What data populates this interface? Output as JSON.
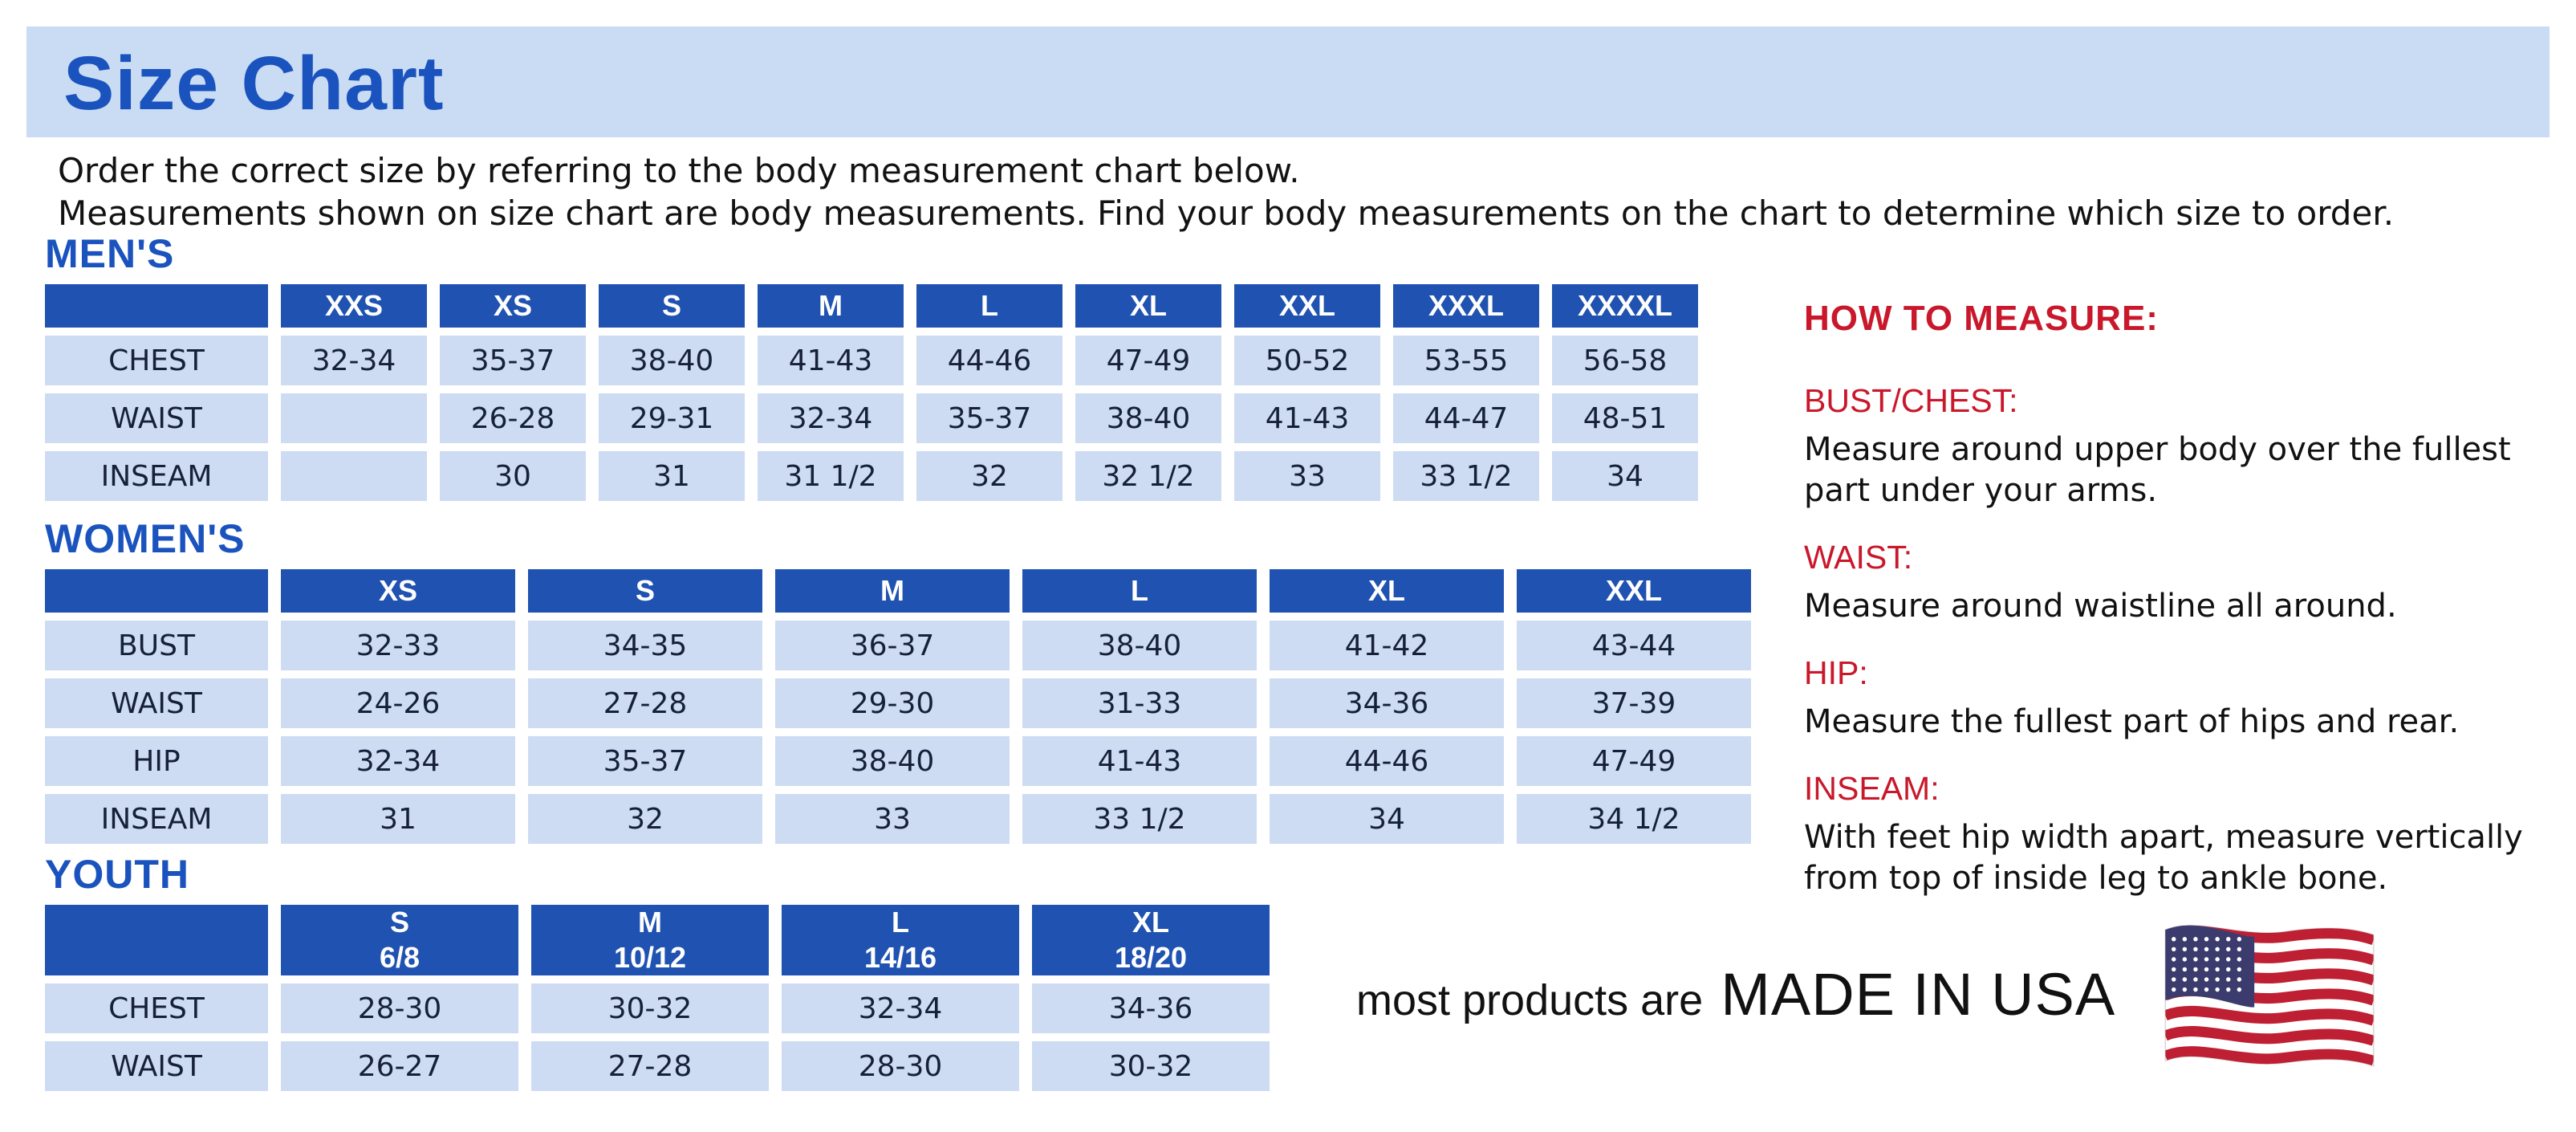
{
  "page": {
    "title": "Size Chart",
    "intro_line1": "Order the correct size by referring to the body measurement chart below.",
    "intro_line2": "Measurements shown on size chart are body measurements.  Find your body measurements on the chart to determine which size to order."
  },
  "colors": {
    "accent_blue": "#1b53be",
    "header_blue": "#2052b2",
    "cell_blue": "#cddcf2",
    "banner_bg": "#c9dcf3",
    "heading_red": "#c9182b",
    "text_dark": "#16203a"
  },
  "tables": [
    {
      "id": "mens",
      "label": "MEN'S",
      "columns": [
        "",
        "XXS",
        "XS",
        "S",
        "M",
        "L",
        "XL",
        "XXL",
        "XXXL",
        "XXXXL"
      ],
      "rows": [
        {
          "label": "CHEST",
          "values": [
            "32-34",
            "35-37",
            "38-40",
            "41-43",
            "44-46",
            "47-49",
            "50-52",
            "53-55",
            "56-58"
          ]
        },
        {
          "label": "WAIST",
          "values": [
            "",
            "26-28",
            "29-31",
            "32-34",
            "35-37",
            "38-40",
            "41-43",
            "44-47",
            "48-51"
          ]
        },
        {
          "label": "INSEAM",
          "values": [
            "",
            "30",
            "31",
            "31 1/2",
            "32",
            "32 1/2",
            "33",
            "33 1/2",
            "34"
          ]
        }
      ]
    },
    {
      "id": "womens",
      "label": "WOMEN'S",
      "columns": [
        "",
        "XS",
        "S",
        "M",
        "L",
        "XL",
        "XXL"
      ],
      "rows": [
        {
          "label": "BUST",
          "values": [
            "32-33",
            "34-35",
            "36-37",
            "38-40",
            "41-42",
            "43-44"
          ]
        },
        {
          "label": "WAIST",
          "values": [
            "24-26",
            "27-28",
            "29-30",
            "31-33",
            "34-36",
            "37-39"
          ]
        },
        {
          "label": "HIP",
          "values": [
            "32-34",
            "35-37",
            "38-40",
            "41-43",
            "44-46",
            "47-49"
          ]
        },
        {
          "label": "INSEAM",
          "values": [
            "31",
            "32",
            "33",
            "33 1/2",
            "34",
            "34 1/2"
          ]
        }
      ]
    },
    {
      "id": "youth",
      "label": "YOUTH",
      "columns": [
        "",
        "S\n6/8",
        "M\n10/12",
        "L\n14/16",
        "XL\n18/20"
      ],
      "rows": [
        {
          "label": "CHEST",
          "values": [
            "28-30",
            "30-32",
            "32-34",
            "34-36"
          ]
        },
        {
          "label": "WAIST",
          "values": [
            "26-27",
            "27-28",
            "28-30",
            "30-32"
          ]
        }
      ]
    }
  ],
  "how_to_measure": {
    "title": "HOW TO MEASURE:",
    "items": [
      {
        "term": "BUST/CHEST:",
        "desc": "Measure around upper body over the fullest part under your arms."
      },
      {
        "term": "WAIST:",
        "desc": "Measure around waistline all around."
      },
      {
        "term": "HIP:",
        "desc": "Measure the fullest part of hips and rear."
      },
      {
        "term": "INSEAM:",
        "desc": "With feet hip width apart, measure vertically from top of inside leg to ankle bone."
      }
    ]
  },
  "footer": {
    "prefix": "most products are",
    "made_in": "MADE IN USA",
    "flag_icon": "us-flag-icon"
  }
}
